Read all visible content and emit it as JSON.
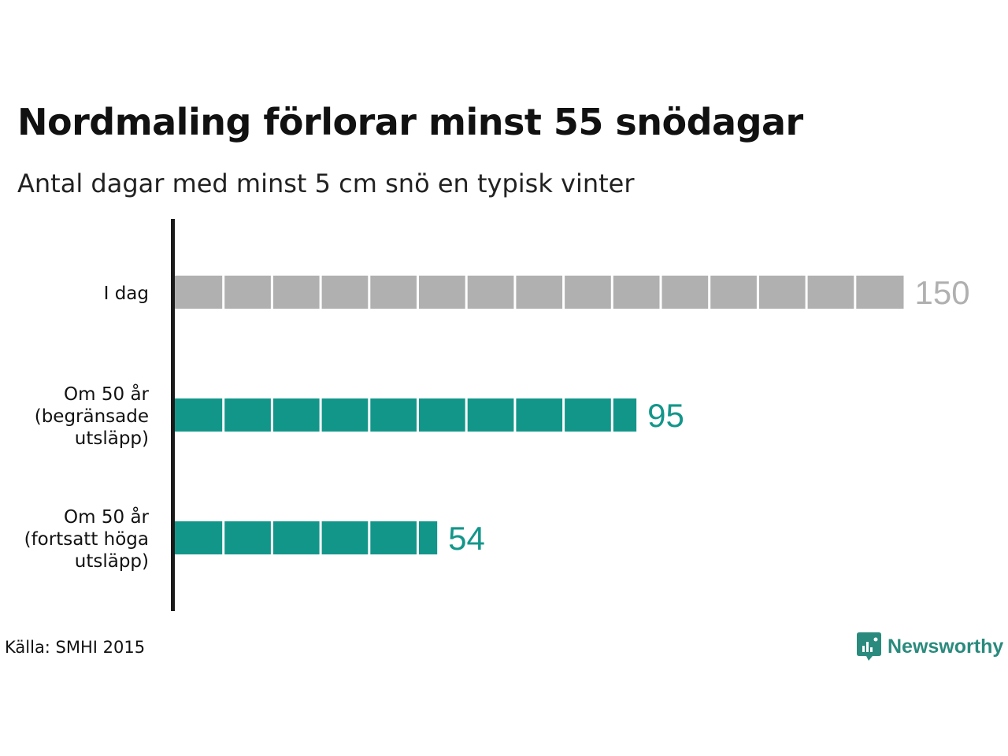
{
  "title": "Nordmaling förlorar minst 55 snödagar",
  "subtitle": "Antal dagar med minst 5 cm snö en typisk vinter",
  "source": "Källa: SMHI 2015",
  "brand": {
    "name": "Newsworthy",
    "icon": "newsworthy-logo-icon"
  },
  "colors": {
    "baseline": "#b0b0b0",
    "scenario": "#13968a",
    "axis": "#1a1a1a"
  },
  "chart_data": {
    "type": "bar",
    "orientation": "horizontal",
    "unit_block": 10,
    "categories": [
      [
        "I dag"
      ],
      [
        "Om 50 år",
        "(begränsade",
        "utsläpp)"
      ],
      [
        "Om 50 år",
        "(fortsatt höga",
        "utsläpp)"
      ]
    ],
    "values": [
      150,
      95,
      54
    ],
    "value_labels": [
      "150",
      "95",
      "54"
    ],
    "bar_colors": [
      "#b0b0b0",
      "#13968a",
      "#13968a"
    ],
    "xlim": [
      0,
      150
    ],
    "grid": false,
    "legend": "none"
  }
}
